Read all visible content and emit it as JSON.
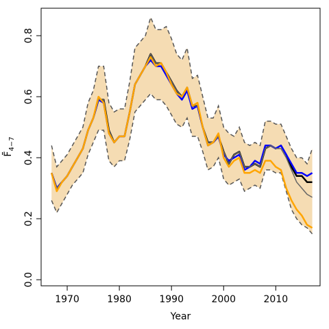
{
  "chart_data": {
    "type": "line",
    "xlabel": "Year",
    "ylabel": "F̄",
    "ylabel_sub": "4−7",
    "xlim": [
      1965,
      2018.5
    ],
    "ylim": [
      -0.02,
      0.89
    ],
    "xticks": [
      1970,
      1980,
      1990,
      2000,
      2010
    ],
    "yticks": [
      0.0,
      0.2,
      0.4,
      0.6,
      0.8
    ],
    "ytick_labels": [
      "0.0",
      "0.2",
      "0.4",
      "0.6",
      "0.8"
    ],
    "grid": false,
    "legend": "none",
    "colors": {
      "band": "#f5dcb3",
      "black": "#000000",
      "blue": "#0000ff",
      "orange": "#ffa500",
      "grey": "#666666",
      "dash": "#555555"
    },
    "years": [
      1967,
      1968,
      1969,
      1970,
      1971,
      1972,
      1973,
      1974,
      1975,
      1976,
      1977,
      1978,
      1979,
      1980,
      1981,
      1982,
      1983,
      1984,
      1985,
      1986,
      1987,
      1988,
      1989,
      1990,
      1991,
      1992,
      1993,
      1994,
      1995,
      1996,
      1997,
      1998,
      1999,
      2000,
      2001,
      2002,
      2003,
      2004,
      2005,
      2006,
      2007,
      2008,
      2009,
      2010,
      2011,
      2012,
      2013,
      2014,
      2015,
      2016,
      2017
    ],
    "band_upper": [
      0.44,
      0.37,
      0.39,
      0.41,
      0.44,
      0.47,
      0.5,
      0.58,
      0.62,
      0.7,
      0.7,
      0.58,
      0.55,
      0.56,
      0.56,
      0.65,
      0.76,
      0.78,
      0.8,
      0.86,
      0.82,
      0.82,
      0.83,
      0.79,
      0.74,
      0.72,
      0.76,
      0.66,
      0.67,
      0.6,
      0.53,
      0.53,
      0.57,
      0.5,
      0.48,
      0.47,
      0.5,
      0.45,
      0.44,
      0.45,
      0.44,
      0.52,
      0.52,
      0.51,
      0.51,
      0.47,
      0.43,
      0.4,
      0.4,
      0.38,
      0.43
    ],
    "band_lower": [
      0.26,
      0.22,
      0.25,
      0.28,
      0.31,
      0.33,
      0.35,
      0.41,
      0.45,
      0.49,
      0.49,
      0.39,
      0.37,
      0.39,
      0.39,
      0.46,
      0.55,
      0.57,
      0.59,
      0.61,
      0.59,
      0.59,
      0.57,
      0.54,
      0.51,
      0.5,
      0.53,
      0.47,
      0.47,
      0.42,
      0.36,
      0.37,
      0.4,
      0.33,
      0.31,
      0.32,
      0.33,
      0.29,
      0.3,
      0.31,
      0.3,
      0.36,
      0.36,
      0.35,
      0.35,
      0.29,
      0.23,
      0.2,
      0.18,
      0.17,
      0.15
    ],
    "series": [
      {
        "color": "black",
        "values": [
          0.35,
          0.3,
          0.32,
          0.34,
          0.37,
          0.4,
          0.43,
          0.49,
          0.53,
          0.59,
          0.59,
          0.49,
          0.45,
          0.47,
          0.47,
          0.55,
          0.64,
          0.67,
          0.7,
          0.74,
          0.71,
          0.71,
          0.68,
          0.65,
          0.62,
          0.6,
          0.63,
          0.57,
          0.57,
          0.5,
          0.45,
          0.45,
          0.47,
          0.42,
          0.38,
          0.41,
          0.42,
          0.37,
          0.37,
          0.38,
          0.37,
          0.43,
          0.44,
          0.43,
          0.44,
          0.41,
          0.37,
          0.34,
          0.34,
          0.32,
          0.32
        ]
      },
      {
        "color": "blue",
        "values": [
          0.35,
          0.3,
          0.32,
          0.34,
          0.37,
          0.4,
          0.43,
          0.49,
          0.53,
          0.59,
          0.58,
          0.48,
          0.45,
          0.47,
          0.47,
          0.55,
          0.64,
          0.67,
          0.7,
          0.72,
          0.7,
          0.7,
          0.67,
          0.64,
          0.61,
          0.59,
          0.62,
          0.56,
          0.57,
          0.5,
          0.44,
          0.45,
          0.47,
          0.41,
          0.39,
          0.4,
          0.41,
          0.36,
          0.37,
          0.39,
          0.38,
          0.44,
          0.44,
          0.43,
          0.44,
          0.41,
          0.38,
          0.35,
          0.35,
          0.34,
          0.35
        ]
      },
      {
        "color": "grey",
        "values": [
          0.35,
          0.3,
          0.32,
          0.34,
          0.37,
          0.4,
          0.43,
          0.49,
          0.53,
          0.59,
          0.59,
          0.49,
          0.45,
          0.47,
          0.47,
          0.55,
          0.64,
          0.67,
          0.7,
          0.74,
          0.71,
          0.71,
          0.68,
          0.65,
          0.62,
          0.6,
          0.63,
          0.57,
          0.57,
          0.5,
          0.45,
          0.45,
          0.47,
          0.42,
          0.38,
          0.41,
          0.42,
          0.37,
          0.37,
          0.38,
          0.37,
          0.43,
          0.44,
          0.43,
          0.43,
          0.4,
          0.36,
          0.32,
          0.3,
          0.28,
          0.27
        ]
      },
      {
        "color": "orange",
        "values": [
          0.35,
          0.29,
          0.32,
          0.34,
          0.37,
          0.4,
          0.43,
          0.49,
          0.53,
          0.6,
          0.58,
          0.48,
          0.45,
          0.47,
          0.47,
          0.55,
          0.64,
          0.67,
          0.7,
          0.73,
          0.7,
          0.71,
          0.68,
          0.64,
          0.61,
          0.6,
          0.63,
          0.57,
          0.58,
          0.5,
          0.44,
          0.45,
          0.48,
          0.4,
          0.37,
          0.39,
          0.4,
          0.35,
          0.35,
          0.36,
          0.35,
          0.39,
          0.39,
          0.37,
          0.36,
          0.3,
          0.26,
          0.23,
          0.21,
          0.18,
          0.17
        ]
      }
    ]
  }
}
